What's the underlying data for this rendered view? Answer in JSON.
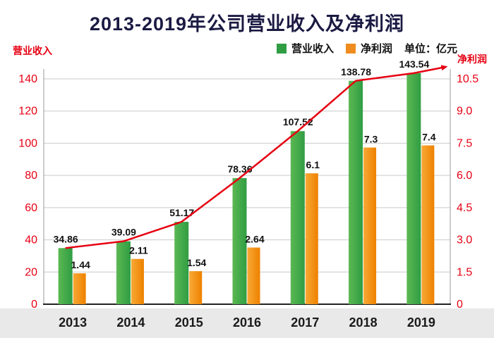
{
  "title": "2013-2019年公司营业收入及净利润",
  "legend": {
    "revenue": "营业收入",
    "profit": "净利润",
    "unit": "单位：亿元"
  },
  "axes": {
    "left_label": "营业收入",
    "right_label": "净利润"
  },
  "chart_data": {
    "type": "bar",
    "title": "2013-2019年公司营业收入及净利润",
    "categories": [
      "2013",
      "2014",
      "2015",
      "2016",
      "2017",
      "2018",
      "2019"
    ],
    "series": [
      {
        "name": "营业收入",
        "axis": "left",
        "type": "bar+line",
        "values": [
          34.86,
          39.09,
          51.17,
          78.36,
          107.52,
          138.78,
          143.54
        ],
        "labels": [
          "34.86",
          "39.09",
          "51.17",
          "78.36",
          "107.52",
          "138.78",
          "143.54"
        ],
        "color_from": "#5cb852",
        "color_to": "#2f9d43"
      },
      {
        "name": "净利润",
        "axis": "right",
        "type": "bar",
        "values": [
          1.44,
          2.11,
          1.54,
          2.64,
          6.1,
          7.3,
          7.4
        ],
        "labels": [
          "1.44",
          "2.11",
          "1.54",
          "2.64",
          "6.1",
          "7.3",
          "7.4"
        ],
        "color_from": "#f8a935",
        "color_to": "#ee8100"
      }
    ],
    "line": {
      "follows_series": "营业收入",
      "color": "#e60012",
      "arrow_end": true
    },
    "left_axis": {
      "min": 0,
      "max": 140,
      "step": 20,
      "tick_color": "#e60012"
    },
    "right_axis": {
      "min": 0,
      "max": 10.5,
      "step": 1.5,
      "tick_color": "#e60012"
    },
    "grid": true,
    "legend_position": "top-right",
    "unit": "亿元"
  },
  "colors": {
    "grid": "#c9c9c9",
    "axis": "#222222",
    "tick": "#e60012",
    "line": "#e60012",
    "xband": "#e9e9e9",
    "year_label": "#1a1a1a",
    "data_label": "#111111"
  }
}
